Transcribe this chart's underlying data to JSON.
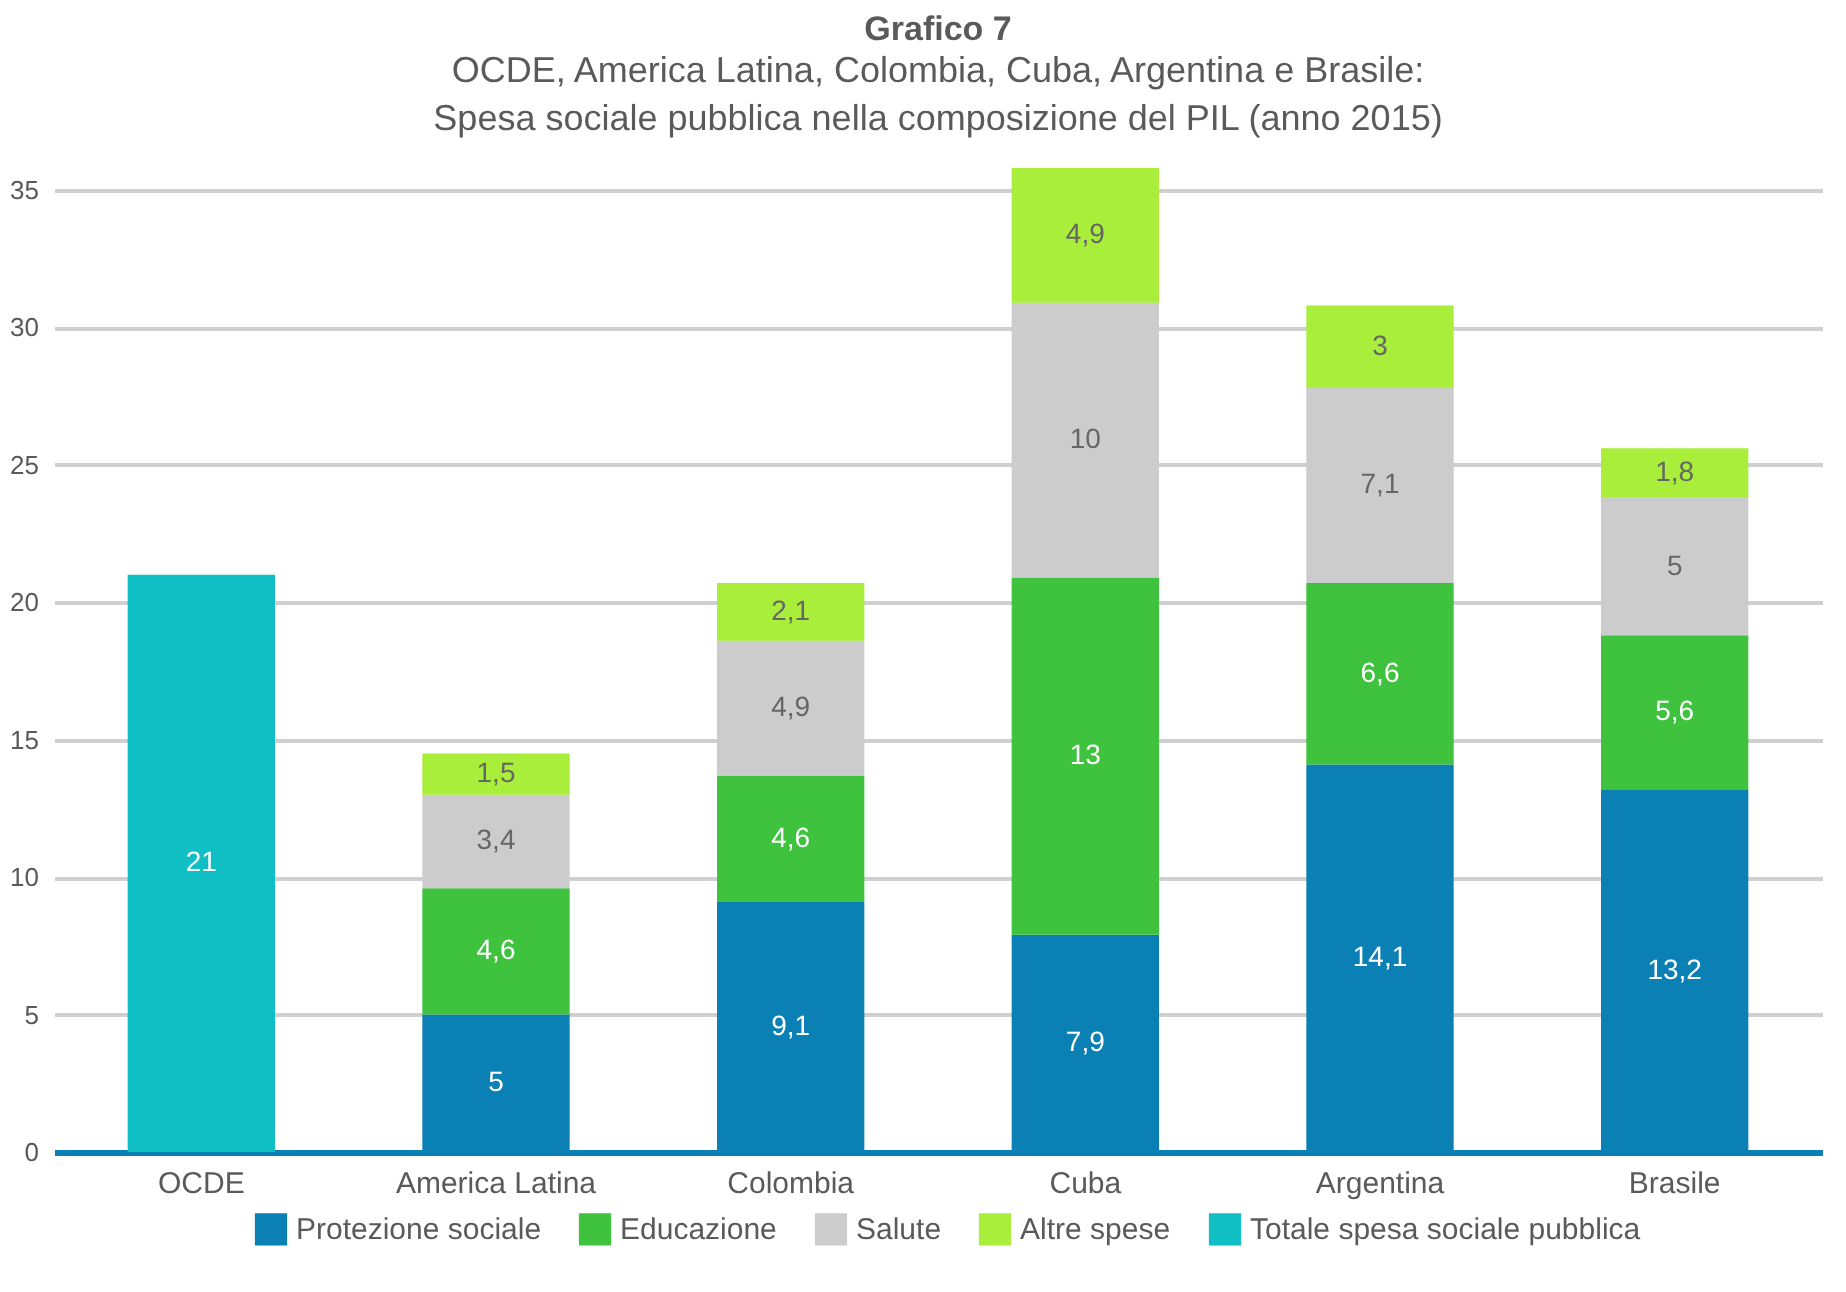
{
  "chart_data": {
    "type": "bar",
    "title": "Grafico 7",
    "subtitle": "OCDE, America Latina, Colombia, Cuba, Argentina e Brasile:\nSpesa sociale pubblica nella composizione del PIL (anno 2015)",
    "categories": [
      "OCDE",
      "America Latina",
      "Colombia",
      "Cuba",
      "Argentina",
      "Brasile"
    ],
    "stacked": true,
    "series": [
      {
        "name": "Protezione sociale",
        "color": "#0a80b4",
        "values": [
          null,
          5,
          9.1,
          7.9,
          14.1,
          13.2
        ],
        "value_labels": [
          null,
          "5",
          "9,1",
          "7,9",
          "14,1",
          "13,2"
        ]
      },
      {
        "name": "Educazione",
        "color": "#3fc23e",
        "values": [
          null,
          4.6,
          4.6,
          13,
          6.6,
          5.6
        ],
        "value_labels": [
          null,
          "4,6",
          "4,6",
          "13",
          "6,6",
          "5,6"
        ]
      },
      {
        "name": "Salute",
        "color": "#cccccc",
        "values": [
          null,
          3.4,
          4.9,
          10,
          7.1,
          5
        ],
        "value_labels": [
          null,
          "3,4",
          "4,9",
          "10",
          "7,1",
          "5"
        ]
      },
      {
        "name": "Altre spese",
        "color": "#a8ee3a",
        "values": [
          null,
          1.5,
          2.1,
          4.9,
          3,
          1.8
        ],
        "value_labels": [
          null,
          "1,5",
          "2,1",
          "4,9",
          "3",
          "1,8"
        ]
      },
      {
        "name": "Totale spesa sociale pubblica",
        "color": "#10bfc4",
        "values": [
          21,
          null,
          null,
          null,
          null,
          null
        ],
        "value_labels": [
          "21",
          null,
          null,
          null,
          null,
          null
        ]
      }
    ],
    "ylim": [
      0,
      35.8
    ],
    "yticks": [
      0,
      5,
      10,
      15,
      20,
      25,
      30,
      35
    ],
    "grid": "y",
    "legend": "bottom"
  }
}
